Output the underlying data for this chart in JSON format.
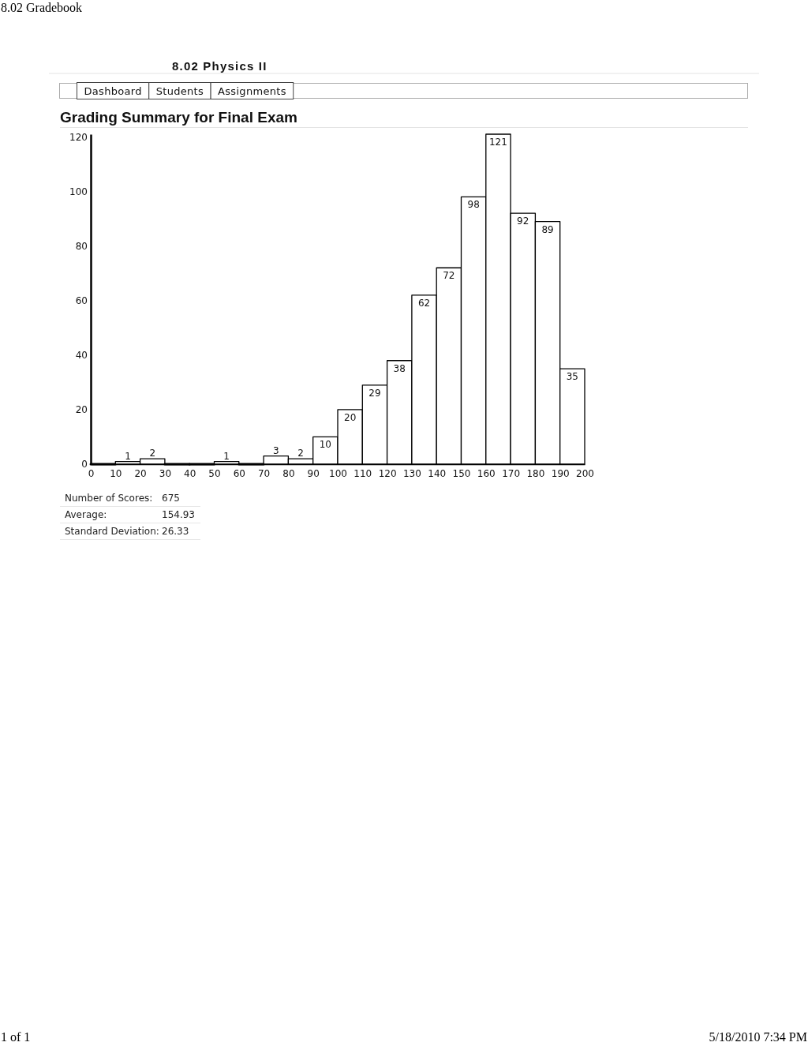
{
  "chart_data": {
    "type": "histogram",
    "title": "Grading Summary for Final Exam",
    "subtitle": "8.02 Physics II",
    "bins": [
      0,
      10,
      20,
      30,
      40,
      50,
      60,
      70,
      80,
      90,
      100,
      110,
      120,
      130,
      140,
      150,
      160,
      170,
      180,
      190,
      200
    ],
    "values": [
      0,
      1,
      2,
      0,
      0,
      1,
      0,
      3,
      2,
      10,
      20,
      29,
      38,
      62,
      72,
      98,
      121,
      92,
      89,
      35
    ],
    "value_labels": [
      null,
      "1",
      "2",
      null,
      null,
      "1",
      null,
      "3",
      "2",
      "10",
      "20",
      "29",
      "38",
      "62",
      "72",
      "98",
      "121",
      "92",
      "89",
      "35"
    ],
    "colors": [
      "#000000",
      "#ffffff",
      "#ffffff",
      "#000000",
      "#000000",
      "#ffffff",
      "#000000",
      "#ffffff",
      "#ffffff",
      "#ffffff",
      "#ffffff",
      "#ffffff",
      "#ffffff",
      "#ffffff",
      "#ffffff",
      "#ffffff",
      "#ffffff",
      "#ffffff",
      "#ffffff",
      "#ffffff"
    ],
    "xlim": [
      0,
      200
    ],
    "xticks": [
      0,
      10,
      20,
      30,
      40,
      50,
      60,
      70,
      80,
      90,
      100,
      110,
      120,
      130,
      140,
      150,
      160,
      170,
      180,
      190,
      200
    ],
    "ylim": [
      0,
      121
    ],
    "yticks": [
      0,
      20,
      40,
      60,
      80,
      100,
      120
    ],
    "annotations": [
      "8.02 Gradebook",
      "Dashboard",
      "Students",
      "Assignments",
      "Number of Scores:",
      "675",
      "Average:",
      "154.93",
      "Standard Deviation:",
      "26.33",
      "1 of 1",
      "5/18/2010 7:34 PM"
    ]
  }
}
